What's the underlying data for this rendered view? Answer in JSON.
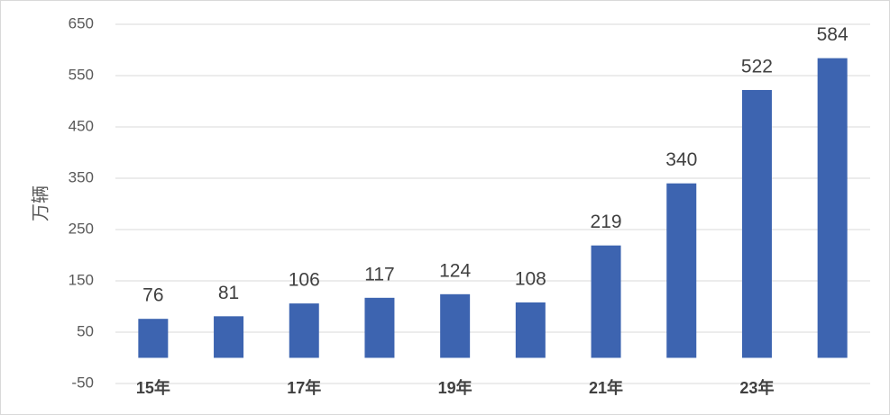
{
  "chart_data": {
    "type": "bar",
    "y_label": "万辆",
    "categories": [
      "15年",
      null,
      "17年",
      null,
      "19年",
      null,
      "21年",
      null,
      "23年",
      null
    ],
    "values": [
      76,
      81,
      106,
      117,
      124,
      108,
      219,
      340,
      522,
      584
    ],
    "color": "#3d64b0",
    "ylim": [
      -50,
      650
    ],
    "yticks": [
      -50,
      50,
      150,
      250,
      350,
      450,
      550,
      650
    ],
    "grid": true
  }
}
